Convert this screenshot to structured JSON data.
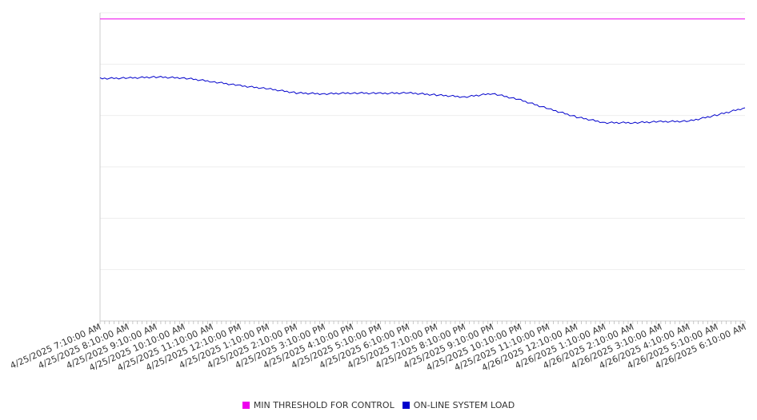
{
  "chart_data": {
    "type": "line",
    "x_labels": [
      "4/25/2025 7:10:00 AM",
      "4/25/2025 8:10:00 AM",
      "4/25/2025 9:10:00 AM",
      "4/25/2025 10:10:00 AM",
      "4/25/2025 11:10:00 AM",
      "4/25/2025 12:10:00 PM",
      "4/25/2025 1:10:00 PM",
      "4/25/2025 2:10:00 PM",
      "4/25/2025 3:10:00 PM",
      "4/25/2025 4:10:00 PM",
      "4/25/2025 5:10:00 PM",
      "4/25/2025 6:10:00 PM",
      "4/25/2025 7:10:00 PM",
      "4/25/2025 8:10:00 PM",
      "4/25/2025 9:10:00 PM",
      "4/25/2025 10:10:00 PM",
      "4/25/2025 11:10:00 PM",
      "4/26/2025 12:10:00 AM",
      "4/26/2025 1:10:00 AM",
      "4/26/2025 2:10:00 AM",
      "4/26/2025 3:10:00 AM",
      "4/26/2025 4:10:00 AM",
      "4/26/2025 5:10:00 AM",
      "4/26/2025 6:10:00 AM"
    ],
    "ylim": [
      0,
      6
    ],
    "grid": true,
    "legend_position": "bottom",
    "series": [
      {
        "name": "MIN THRESHOLD FOR CONTROL",
        "color": "#ee00ee",
        "values": [
          5.88,
          5.88,
          5.88,
          5.88,
          5.88,
          5.88,
          5.88,
          5.88,
          5.88,
          5.88,
          5.88,
          5.88,
          5.88,
          5.88,
          5.88,
          5.88,
          5.88,
          5.88,
          5.88,
          5.88,
          5.88,
          5.88,
          5.88,
          5.88
        ]
      },
      {
        "name": "ON-LINE SYSTEM LOAD",
        "color": "#0000cc",
        "values": [
          4.72,
          4.73,
          4.75,
          4.73,
          4.66,
          4.58,
          4.52,
          4.44,
          4.42,
          4.44,
          4.43,
          4.44,
          4.4,
          4.36,
          4.43,
          4.3,
          4.13,
          3.97,
          3.86,
          3.86,
          3.88,
          3.89,
          4.01,
          4.15
        ]
      }
    ]
  }
}
